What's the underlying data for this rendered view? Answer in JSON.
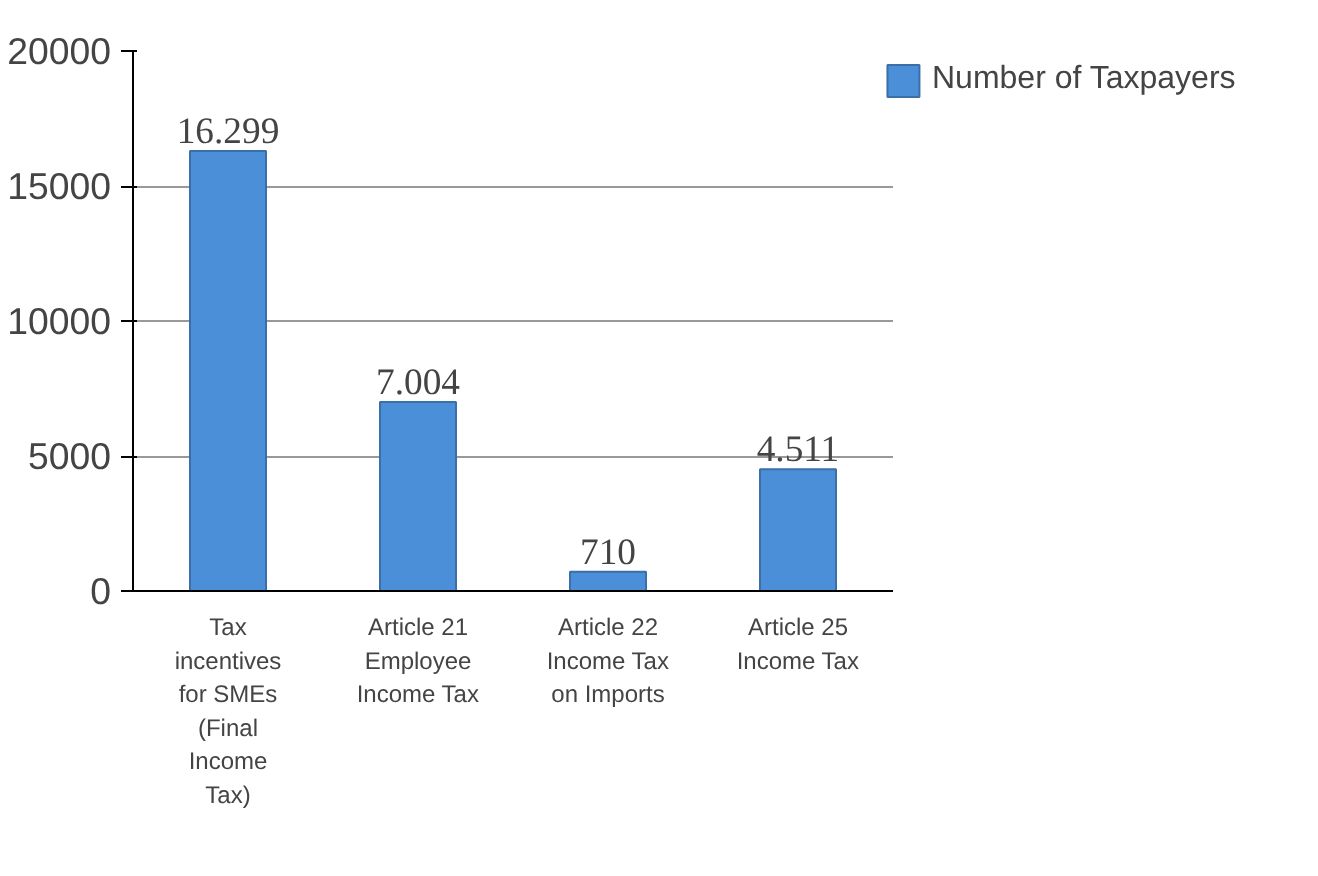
{
  "chart_data": {
    "type": "bar",
    "categories": [
      "Tax incentives for SMEs (Final Income Tax)",
      "Article 21 Employee Income Tax",
      "Article 22 Income Tax on Imports",
      "Article 25 Income Tax"
    ],
    "series": [
      {
        "name": "Number of Taxpayers",
        "color": "#4a8fd8",
        "values": [
          16299,
          7004,
          710,
          4511
        ]
      }
    ],
    "value_labels": [
      "16.299",
      "7.004",
      "710",
      "4.511"
    ],
    "ylim": [
      0,
      20000
    ],
    "yticks": [
      0,
      5000,
      10000,
      15000,
      20000
    ],
    "grid": "y",
    "legend": "right"
  }
}
